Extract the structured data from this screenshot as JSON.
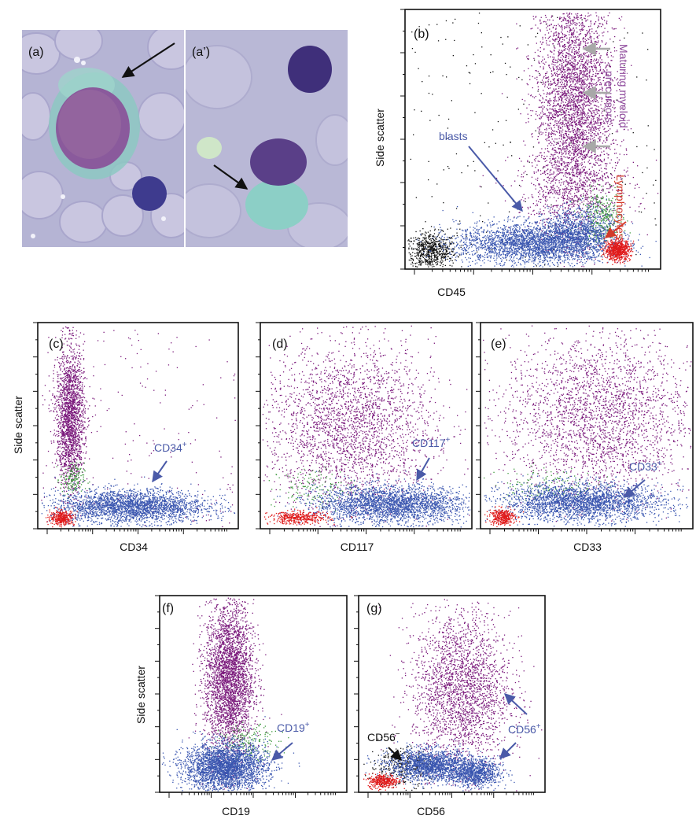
{
  "micrographs": [
    {
      "id": "micro-a",
      "label": "(a)"
    },
    {
      "id": "micro-a2",
      "label": "(a’)"
    }
  ],
  "colors": {
    "maturing_myeloid": "#7b1a7c",
    "blasts": "#3a56b0",
    "lymphocytes": "#e01b1b",
    "transition": "#3e9a3e",
    "debris": "#111111",
    "indicator_arrow": "#a8a8a8",
    "annotation_blue": "#4a5aa8",
    "annotation_purple": "#8e4a9c",
    "annotation_red": "#d23a2a"
  },
  "chart_data": [
    {
      "id": "b",
      "type": "scatter",
      "panel_label": "(b)",
      "xlabel": "CD45",
      "ylabel": "Side scatter",
      "x_scale": "log",
      "xlim": [
        0,
        1
      ],
      "ylim": [
        0,
        1
      ],
      "series": [
        {
          "role": "debris",
          "color": "#111111",
          "clusters": [
            {
              "n": 700,
              "cx": 0.1,
              "cy": 0.07,
              "sx": 0.05,
              "sy": 0.035
            },
            {
              "n": 220,
              "cx": 0.5,
              "cy": 0.55,
              "sx": 0.5,
              "sy": 0.5,
              "uniform": true
            }
          ]
        },
        {
          "role": "maturing_myeloid",
          "color": "#7b1a7c",
          "clusters": [
            {
              "n": 3800,
              "cx": 0.66,
              "cy": 0.64,
              "sx": 0.075,
              "sy": 0.24
            },
            {
              "n": 500,
              "cx": 0.66,
              "cy": 0.3,
              "sx": 0.12,
              "sy": 0.08
            }
          ]
        },
        {
          "role": "transition",
          "color": "#3e9a3e",
          "clusters": [
            {
              "n": 320,
              "cx": 0.77,
              "cy": 0.2,
              "sx": 0.04,
              "sy": 0.05
            }
          ]
        },
        {
          "role": "blasts",
          "color": "#3a56b0",
          "clusters": [
            {
              "n": 2800,
              "cx": 0.5,
              "cy": 0.1,
              "sx": 0.15,
              "sy": 0.04
            },
            {
              "n": 900,
              "cx": 0.68,
              "cy": 0.15,
              "sx": 0.07,
              "sy": 0.045
            }
          ]
        },
        {
          "role": "lymphocytes",
          "color": "#e01b1b",
          "clusters": [
            {
              "n": 700,
              "cx": 0.83,
              "cy": 0.075,
              "sx": 0.025,
              "sy": 0.02
            }
          ]
        }
      ],
      "annotations": [
        {
          "text": "blasts",
          "color": "#4a5aa8"
        },
        {
          "text": "Maturing myeloid precursors",
          "lines": [
            "Maturing myeloid",
            "precursors"
          ],
          "color": "#8e4a9c"
        },
        {
          "text": "Lymphocytes",
          "color": "#d23a2a"
        }
      ]
    },
    {
      "id": "c",
      "type": "scatter",
      "panel_label": "(c)",
      "xlabel": "CD34",
      "ylabel": "Side scatter",
      "x_scale": "log",
      "xlim": [
        0,
        1
      ],
      "ylim": [
        0,
        1
      ],
      "series": [
        {
          "role": "maturing_myeloid",
          "color": "#7b1a7c",
          "clusters": [
            {
              "n": 2000,
              "cx": 0.16,
              "cy": 0.54,
              "sx": 0.035,
              "sy": 0.17
            },
            {
              "n": 200,
              "cx": 0.45,
              "cy": 0.55,
              "sx": 0.4,
              "sy": 0.4,
              "uniform": true
            }
          ]
        },
        {
          "role": "transition",
          "color": "#3e9a3e",
          "clusters": [
            {
              "n": 150,
              "cx": 0.17,
              "cy": 0.24,
              "sx": 0.03,
              "sy": 0.04
            }
          ]
        },
        {
          "role": "blasts",
          "color": "#3a56b0",
          "clusters": [
            {
              "n": 2600,
              "cx": 0.46,
              "cy": 0.11,
              "sx": 0.19,
              "sy": 0.04
            }
          ]
        },
        {
          "role": "lymphocytes",
          "color": "#e01b1b",
          "clusters": [
            {
              "n": 350,
              "cx": 0.12,
              "cy": 0.055,
              "sx": 0.03,
              "sy": 0.018
            }
          ]
        }
      ],
      "annotations": [
        {
          "text": "CD34",
          "sup": "+",
          "color": "#4a5aa8"
        }
      ]
    },
    {
      "id": "d",
      "type": "scatter",
      "panel_label": "(d)",
      "xlabel": "CD117",
      "ylabel": "",
      "x_scale": "log",
      "xlim": [
        0,
        1
      ],
      "ylim": [
        0,
        1
      ],
      "series": [
        {
          "role": "maturing_myeloid",
          "color": "#7b1a7c",
          "clusters": [
            {
              "n": 2600,
              "cx": 0.42,
              "cy": 0.5,
              "sx": 0.2,
              "sy": 0.2
            }
          ]
        },
        {
          "role": "transition",
          "color": "#3e9a3e",
          "clusters": [
            {
              "n": 150,
              "cx": 0.25,
              "cy": 0.2,
              "sx": 0.1,
              "sy": 0.05
            }
          ]
        },
        {
          "role": "blasts",
          "color": "#3a56b0",
          "clusters": [
            {
              "n": 2600,
              "cx": 0.62,
              "cy": 0.12,
              "sx": 0.18,
              "sy": 0.045
            }
          ]
        },
        {
          "role": "lymphocytes",
          "color": "#e01b1b",
          "clusters": [
            {
              "n": 400,
              "cx": 0.18,
              "cy": 0.055,
              "sx": 0.07,
              "sy": 0.015
            }
          ]
        }
      ],
      "annotations": [
        {
          "text": "CD117",
          "sup": "+",
          "color": "#4a5aa8"
        }
      ]
    },
    {
      "id": "e",
      "type": "scatter",
      "panel_label": "(e)",
      "xlabel": "CD33",
      "ylabel": "",
      "x_scale": "log",
      "xlim": [
        0,
        1
      ],
      "ylim": [
        0,
        1
      ],
      "series": [
        {
          "role": "maturing_myeloid",
          "color": "#7b1a7c",
          "clusters": [
            {
              "n": 2600,
              "cx": 0.55,
              "cy": 0.55,
              "sx": 0.22,
              "sy": 0.2
            }
          ]
        },
        {
          "role": "transition",
          "color": "#3e9a3e",
          "clusters": [
            {
              "n": 140,
              "cx": 0.3,
              "cy": 0.22,
              "sx": 0.12,
              "sy": 0.04
            }
          ]
        },
        {
          "role": "blasts",
          "color": "#3a56b0",
          "clusters": [
            {
              "n": 2600,
              "cx": 0.48,
              "cy": 0.13,
              "sx": 0.19,
              "sy": 0.045
            }
          ]
        },
        {
          "role": "lymphocytes",
          "color": "#e01b1b",
          "clusters": [
            {
              "n": 350,
              "cx": 0.1,
              "cy": 0.06,
              "sx": 0.03,
              "sy": 0.02
            }
          ]
        }
      ],
      "annotations": [
        {
          "text": "CD33",
          "sup": "+",
          "color": "#4a5aa8"
        }
      ]
    },
    {
      "id": "f",
      "type": "scatter",
      "panel_label": "(f)",
      "xlabel": "CD19",
      "ylabel": "Side scatter",
      "x_scale": "log",
      "xlim": [
        0,
        1
      ],
      "ylim": [
        0,
        1
      ],
      "series": [
        {
          "role": "maturing_myeloid",
          "color": "#7b1a7c",
          "clusters": [
            {
              "n": 3200,
              "cx": 0.37,
              "cy": 0.58,
              "sx": 0.065,
              "sy": 0.2
            }
          ]
        },
        {
          "role": "transition",
          "color": "#3e9a3e",
          "clusters": [
            {
              "n": 180,
              "cx": 0.48,
              "cy": 0.26,
              "sx": 0.08,
              "sy": 0.04
            }
          ]
        },
        {
          "role": "blasts",
          "color": "#3a56b0",
          "clusters": [
            {
              "n": 3000,
              "cx": 0.35,
              "cy": 0.13,
              "sx": 0.11,
              "sy": 0.06
            }
          ]
        }
      ],
      "annotations": [
        {
          "text": "CD19",
          "sup": "+",
          "color": "#4a5aa8"
        }
      ]
    },
    {
      "id": "g",
      "type": "scatter",
      "panel_label": "(g)",
      "xlabel": "CD56",
      "ylabel": "",
      "x_scale": "log",
      "xlim": [
        0,
        1
      ],
      "ylim": [
        0,
        1
      ],
      "series": [
        {
          "role": "maturing_myeloid",
          "color": "#7b1a7c",
          "clusters": [
            {
              "n": 2400,
              "cx": 0.55,
              "cy": 0.52,
              "sx": 0.13,
              "sy": 0.2
            }
          ]
        },
        {
          "role": "debris",
          "color": "#111111",
          "clusters": [
            {
              "n": 300,
              "cx": 0.22,
              "cy": 0.13,
              "sx": 0.08,
              "sy": 0.05
            }
          ]
        },
        {
          "role": "blasts",
          "color": "#3a56b0",
          "clusters": [
            {
              "n": 1700,
              "cx": 0.38,
              "cy": 0.14,
              "sx": 0.11,
              "sy": 0.04
            },
            {
              "n": 1000,
              "cx": 0.62,
              "cy": 0.1,
              "sx": 0.07,
              "sy": 0.035
            }
          ]
        },
        {
          "role": "lymphocytes",
          "color": "#e01b1b",
          "clusters": [
            {
              "n": 350,
              "cx": 0.13,
              "cy": 0.06,
              "sx": 0.04,
              "sy": 0.018
            }
          ]
        }
      ],
      "annotations": [
        {
          "text": "CD56",
          "sup": "−",
          "color": "#111111"
        },
        {
          "text": "CD56",
          "sup": "+",
          "color": "#4a5aa8"
        }
      ]
    }
  ]
}
